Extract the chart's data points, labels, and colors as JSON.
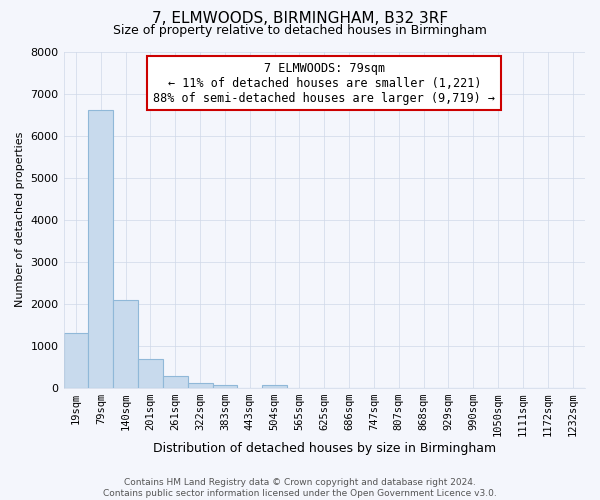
{
  "title": "7, ELMWOODS, BIRMINGHAM, B32 3RF",
  "subtitle": "Size of property relative to detached houses in Birmingham",
  "xlabel": "Distribution of detached houses by size in Birmingham",
  "ylabel": "Number of detached properties",
  "footer_line1": "Contains HM Land Registry data © Crown copyright and database right 2024.",
  "footer_line2": "Contains public sector information licensed under the Open Government Licence v3.0.",
  "annotation_title": "7 ELMWOODS: 79sqm",
  "annotation_line1": "← 11% of detached houses are smaller (1,221)",
  "annotation_line2": "88% of semi-detached houses are larger (9,719) →",
  "categories": [
    "19sqm",
    "79sqm",
    "140sqm",
    "201sqm",
    "261sqm",
    "322sqm",
    "383sqm",
    "443sqm",
    "504sqm",
    "565sqm",
    "625sqm",
    "686sqm",
    "747sqm",
    "807sqm",
    "868sqm",
    "929sqm",
    "990sqm",
    "1050sqm",
    "1111sqm",
    "1172sqm",
    "1232sqm"
  ],
  "values": [
    1300,
    6600,
    2090,
    680,
    290,
    110,
    70,
    0,
    70,
    0,
    0,
    0,
    0,
    0,
    0,
    0,
    0,
    0,
    0,
    0,
    0
  ],
  "bar_fill_color": "#c8daed",
  "bar_edge_color": "#90b8d8",
  "background_color": "#f4f6fc",
  "plot_bg_color": "#f4f6fc",
  "grid_color": "#d0d8e8",
  "annotation_bg": "#ffffff",
  "annotation_edge": "#cc0000",
  "ylim": [
    0,
    8000
  ],
  "yticks": [
    0,
    1000,
    2000,
    3000,
    4000,
    5000,
    6000,
    7000,
    8000
  ],
  "title_fontsize": 11,
  "subtitle_fontsize": 9,
  "xlabel_fontsize": 9,
  "ylabel_fontsize": 8,
  "xtick_fontsize": 7.5,
  "ytick_fontsize": 8,
  "annotation_fontsize": 8.5,
  "footer_fontsize": 6.5
}
